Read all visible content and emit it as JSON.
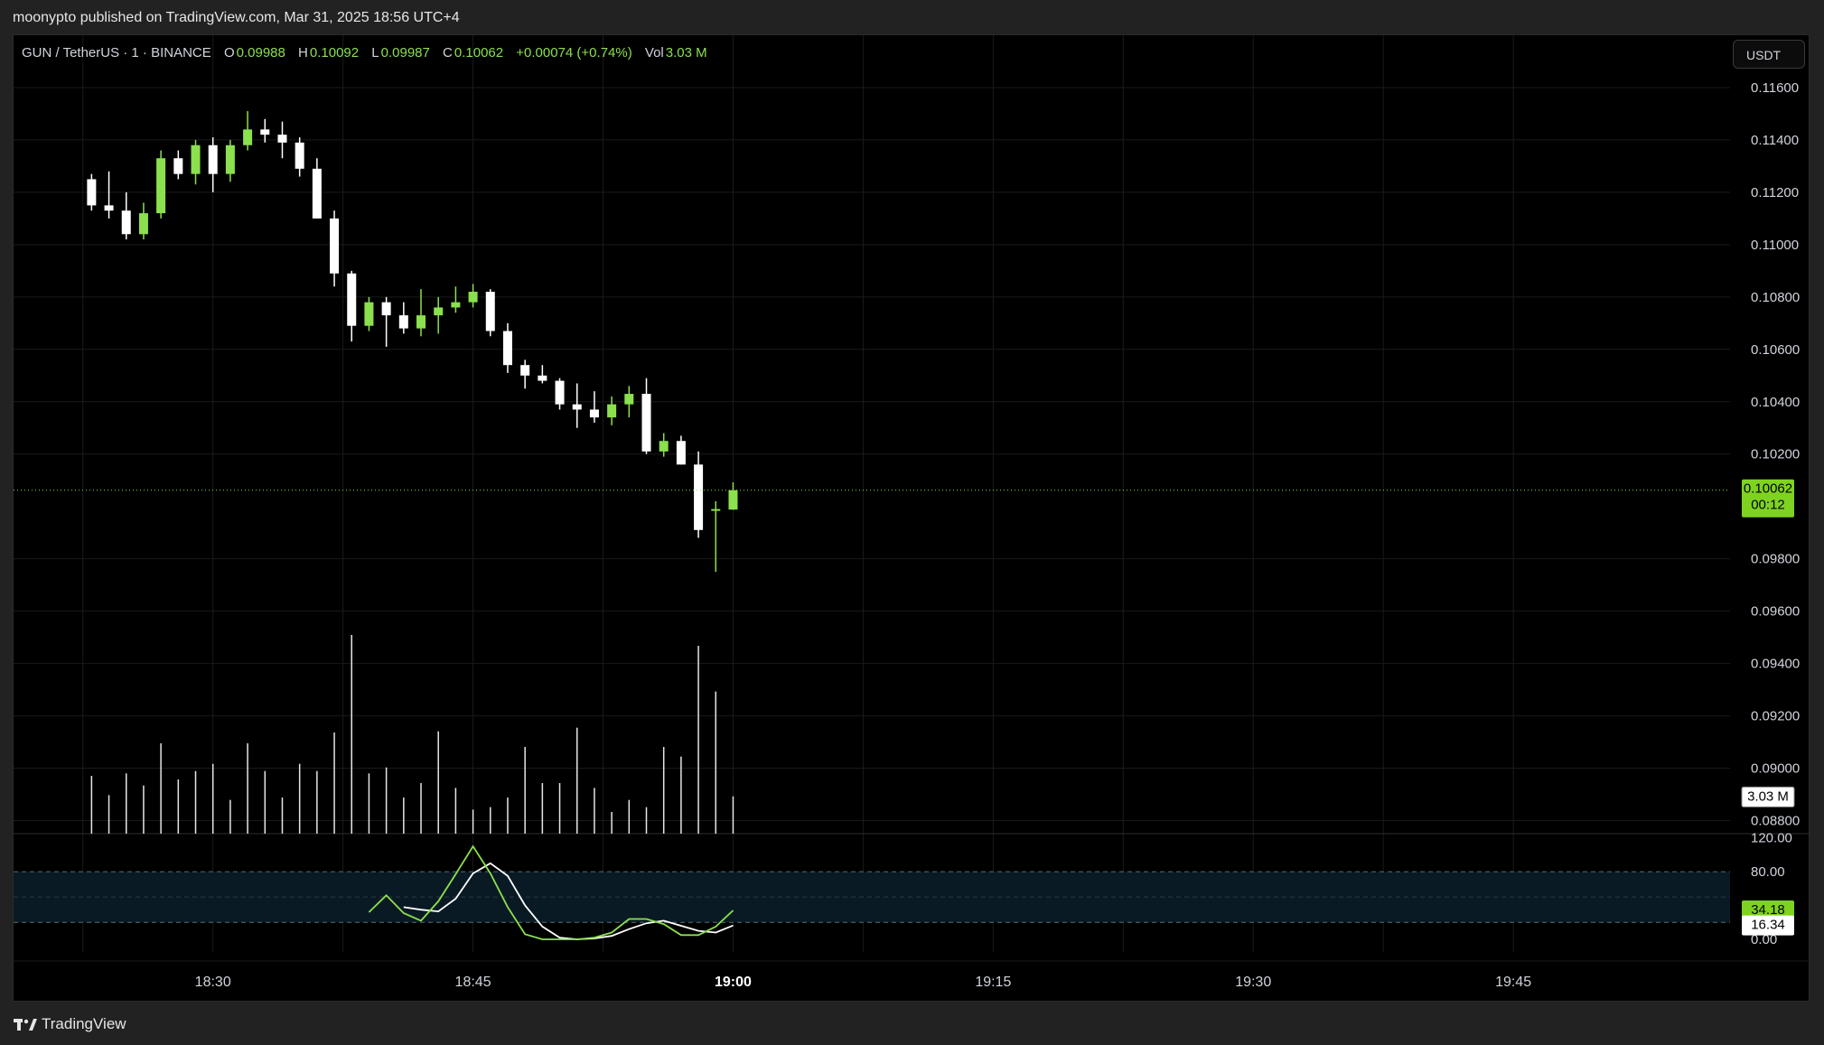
{
  "header": {
    "publish_text": "moonypto published on TradingView.com, Mar 31, 2025 18:56 UTC+4"
  },
  "footer": {
    "brand": "TradingView"
  },
  "toolbar": {
    "currency": "USDT"
  },
  "legend": {
    "symbol": "GUN / TetherUS · 1 · BINANCE",
    "o_label": "O",
    "o_value": "0.09988",
    "h_label": "H",
    "h_value": "0.10092",
    "l_label": "L",
    "l_value": "0.09987",
    "c_label": "C",
    "c_value": "0.10062",
    "change": "+0.00074 (+0.74%)",
    "vol_label": "Vol",
    "vol_value": "3.03 M"
  },
  "colors": {
    "up": "#8be04e",
    "down": "#ffffff",
    "price_badge": "#7ed321",
    "grid": "#1a1a1a",
    "band_fill": "#0a1a24"
  },
  "badges": {
    "price": "0.10062",
    "countdown": "00:12",
    "volume": "3.03 M",
    "stoch_k": "34.18",
    "stoch_d": "16.34"
  },
  "chart_data": {
    "type": "candlestick",
    "price_axis": {
      "ticks": [
        "0.11600",
        "0.11400",
        "0.11200",
        "0.11000",
        "0.10800",
        "0.10600",
        "0.10400",
        "0.10200",
        "0.09800",
        "0.09600",
        "0.09400",
        "0.09200",
        "0.09000",
        "0.08800"
      ],
      "tick_values": [
        0.116,
        0.114,
        0.112,
        0.11,
        0.108,
        0.106,
        0.104,
        0.102,
        0.098,
        0.096,
        0.094,
        0.092,
        0.09,
        0.088
      ],
      "range": [
        0.0875,
        0.118
      ],
      "last_price": 0.10062
    },
    "time_axis": {
      "labels": [
        "18:30",
        "18:45",
        "19:00",
        "19:15",
        "19:30",
        "19:45"
      ],
      "bold_label": "19:00",
      "range_minutes": [
        1098.5,
        1197.5
      ],
      "label_minutes": [
        1110,
        1125,
        1140,
        1155,
        1170,
        1185
      ]
    },
    "candles": [
      {
        "t": 1103,
        "o": 0.1125,
        "h": 0.1127,
        "l": 0.1113,
        "c": 0.1115
      },
      {
        "t": 1104,
        "o": 0.1115,
        "h": 0.1128,
        "l": 0.111,
        "c": 0.1113
      },
      {
        "t": 1105,
        "o": 0.1113,
        "h": 0.112,
        "l": 0.1102,
        "c": 0.1104
      },
      {
        "t": 1106,
        "o": 0.1104,
        "h": 0.1116,
        "l": 0.1102,
        "c": 0.1112
      },
      {
        "t": 1107,
        "o": 0.1112,
        "h": 0.1136,
        "l": 0.111,
        "c": 0.1133
      },
      {
        "t": 1108,
        "o": 0.1133,
        "h": 0.1136,
        "l": 0.1125,
        "c": 0.1127
      },
      {
        "t": 1109,
        "o": 0.1127,
        "h": 0.114,
        "l": 0.1123,
        "c": 0.1138
      },
      {
        "t": 1110,
        "o": 0.1138,
        "h": 0.1141,
        "l": 0.112,
        "c": 0.1127
      },
      {
        "t": 1111,
        "o": 0.1127,
        "h": 0.114,
        "l": 0.1124,
        "c": 0.1138
      },
      {
        "t": 1112,
        "o": 0.1138,
        "h": 0.1151,
        "l": 0.1136,
        "c": 0.1144
      },
      {
        "t": 1113,
        "o": 0.1144,
        "h": 0.1148,
        "l": 0.1139,
        "c": 0.1142
      },
      {
        "t": 1114,
        "o": 0.1142,
        "h": 0.1147,
        "l": 0.1133,
        "c": 0.1139
      },
      {
        "t": 1115,
        "o": 0.1139,
        "h": 0.1141,
        "l": 0.1126,
        "c": 0.1129
      },
      {
        "t": 1116,
        "o": 0.1129,
        "h": 0.1133,
        "l": 0.111,
        "c": 0.111
      },
      {
        "t": 1117,
        "o": 0.111,
        "h": 0.1113,
        "l": 0.1084,
        "c": 0.1089
      },
      {
        "t": 1118,
        "o": 0.1089,
        "h": 0.109,
        "l": 0.1063,
        "c": 0.1069
      },
      {
        "t": 1119,
        "o": 0.1069,
        "h": 0.108,
        "l": 0.1067,
        "c": 0.1078
      },
      {
        "t": 1120,
        "o": 0.1078,
        "h": 0.108,
        "l": 0.1061,
        "c": 0.1073
      },
      {
        "t": 1121,
        "o": 0.1073,
        "h": 0.1078,
        "l": 0.1066,
        "c": 0.1068
      },
      {
        "t": 1122,
        "o": 0.1068,
        "h": 0.1083,
        "l": 0.1065,
        "c": 0.1073
      },
      {
        "t": 1123,
        "o": 0.1073,
        "h": 0.108,
        "l": 0.1066,
        "c": 0.1076
      },
      {
        "t": 1124,
        "o": 0.1076,
        "h": 0.1084,
        "l": 0.1074,
        "c": 0.1078
      },
      {
        "t": 1125,
        "o": 0.1078,
        "h": 0.1085,
        "l": 0.1076,
        "c": 0.1082
      },
      {
        "t": 1126,
        "o": 0.1082,
        "h": 0.1083,
        "l": 0.1065,
        "c": 0.1067
      },
      {
        "t": 1127,
        "o": 0.1067,
        "h": 0.107,
        "l": 0.1051,
        "c": 0.1054
      },
      {
        "t": 1128,
        "o": 0.1054,
        "h": 0.1056,
        "l": 0.1045,
        "c": 0.105
      },
      {
        "t": 1129,
        "o": 0.105,
        "h": 0.1054,
        "l": 0.1047,
        "c": 0.1048
      },
      {
        "t": 1130,
        "o": 0.1048,
        "h": 0.1049,
        "l": 0.1037,
        "c": 0.1039
      },
      {
        "t": 1131,
        "o": 0.1039,
        "h": 0.1047,
        "l": 0.103,
        "c": 0.1037
      },
      {
        "t": 1132,
        "o": 0.1037,
        "h": 0.1044,
        "l": 0.1032,
        "c": 0.1034
      },
      {
        "t": 1133,
        "o": 0.1034,
        "h": 0.1042,
        "l": 0.1031,
        "c": 0.1039
      },
      {
        "t": 1134,
        "o": 0.1039,
        "h": 0.1046,
        "l": 0.1034,
        "c": 0.1043
      },
      {
        "t": 1135,
        "o": 0.1043,
        "h": 0.1049,
        "l": 0.102,
        "c": 0.1021
      },
      {
        "t": 1136,
        "o": 0.1021,
        "h": 0.1028,
        "l": 0.1019,
        "c": 0.1025
      },
      {
        "t": 1137,
        "o": 0.1025,
        "h": 0.1027,
        "l": 0.1016,
        "c": 0.1016
      },
      {
        "t": 1138,
        "o": 0.1016,
        "h": 0.1021,
        "l": 0.0988,
        "c": 0.0991
      },
      {
        "t": 1139,
        "o": 0.09988,
        "h": 0.1002,
        "l": 0.0975,
        "c": 0.0999
      },
      {
        "t": 1140,
        "o": 0.09988,
        "h": 0.10092,
        "l": 0.09987,
        "c": 0.10062
      }
    ],
    "volume": [
      {
        "t": 1103,
        "v": 0.48
      },
      {
        "t": 1104,
        "v": 0.32
      },
      {
        "t": 1105,
        "v": 0.5
      },
      {
        "t": 1106,
        "v": 0.4
      },
      {
        "t": 1107,
        "v": 0.75
      },
      {
        "t": 1108,
        "v": 0.45
      },
      {
        "t": 1109,
        "v": 0.52
      },
      {
        "t": 1110,
        "v": 0.58
      },
      {
        "t": 1111,
        "v": 0.28
      },
      {
        "t": 1112,
        "v": 0.75
      },
      {
        "t": 1113,
        "v": 0.52
      },
      {
        "t": 1114,
        "v": 0.3
      },
      {
        "t": 1115,
        "v": 0.58
      },
      {
        "t": 1116,
        "v": 0.52
      },
      {
        "t": 1117,
        "v": 0.84
      },
      {
        "t": 1118,
        "v": 1.65
      },
      {
        "t": 1119,
        "v": 0.5
      },
      {
        "t": 1120,
        "v": 0.55
      },
      {
        "t": 1121,
        "v": 0.3
      },
      {
        "t": 1122,
        "v": 0.42
      },
      {
        "t": 1123,
        "v": 0.85
      },
      {
        "t": 1124,
        "v": 0.38
      },
      {
        "t": 1125,
        "v": 0.2
      },
      {
        "t": 1126,
        "v": 0.22
      },
      {
        "t": 1127,
        "v": 0.3
      },
      {
        "t": 1128,
        "v": 0.72
      },
      {
        "t": 1129,
        "v": 0.42
      },
      {
        "t": 1130,
        "v": 0.42
      },
      {
        "t": 1131,
        "v": 0.88
      },
      {
        "t": 1132,
        "v": 0.38
      },
      {
        "t": 1133,
        "v": 0.18
      },
      {
        "t": 1134,
        "v": 0.28
      },
      {
        "t": 1135,
        "v": 0.22
      },
      {
        "t": 1136,
        "v": 0.72
      },
      {
        "t": 1137,
        "v": 0.64
      },
      {
        "t": 1138,
        "v": 1.56
      },
      {
        "t": 1139,
        "v": 1.18
      },
      {
        "t": 1140,
        "v": 0.31
      }
    ],
    "stoch": {
      "axis_ticks": [
        "120.00",
        "80.00",
        "0.00"
      ],
      "axis_values": [
        120,
        80,
        0
      ],
      "band": [
        20,
        80
      ],
      "midline": 50,
      "range": [
        -15,
        125
      ],
      "k": [
        {
          "t": 1119,
          "v": 32
        },
        {
          "t": 1120,
          "v": 52
        },
        {
          "t": 1121,
          "v": 31
        },
        {
          "t": 1122,
          "v": 22
        },
        {
          "t": 1123,
          "v": 45
        },
        {
          "t": 1124,
          "v": 77
        },
        {
          "t": 1125,
          "v": 110
        },
        {
          "t": 1126,
          "v": 78
        },
        {
          "t": 1127,
          "v": 38
        },
        {
          "t": 1128,
          "v": 6
        },
        {
          "t": 1129,
          "v": 0
        },
        {
          "t": 1130,
          "v": 0
        },
        {
          "t": 1131,
          "v": 0
        },
        {
          "t": 1132,
          "v": 2
        },
        {
          "t": 1133,
          "v": 8
        },
        {
          "t": 1134,
          "v": 24
        },
        {
          "t": 1135,
          "v": 24
        },
        {
          "t": 1136,
          "v": 18
        },
        {
          "t": 1137,
          "v": 5
        },
        {
          "t": 1138,
          "v": 5
        },
        {
          "t": 1139,
          "v": 15
        },
        {
          "t": 1140,
          "v": 34.18
        }
      ],
      "d": [
        {
          "t": 1121,
          "v": 38
        },
        {
          "t": 1122,
          "v": 35
        },
        {
          "t": 1123,
          "v": 33
        },
        {
          "t": 1124,
          "v": 48
        },
        {
          "t": 1125,
          "v": 78
        },
        {
          "t": 1126,
          "v": 90
        },
        {
          "t": 1127,
          "v": 75
        },
        {
          "t": 1128,
          "v": 40
        },
        {
          "t": 1129,
          "v": 15
        },
        {
          "t": 1130,
          "v": 2
        },
        {
          "t": 1131,
          "v": 0
        },
        {
          "t": 1132,
          "v": 1
        },
        {
          "t": 1133,
          "v": 4
        },
        {
          "t": 1134,
          "v": 12
        },
        {
          "t": 1135,
          "v": 19
        },
        {
          "t": 1136,
          "v": 22
        },
        {
          "t": 1137,
          "v": 16
        },
        {
          "t": 1138,
          "v": 10
        },
        {
          "t": 1139,
          "v": 8
        },
        {
          "t": 1140,
          "v": 16.34
        }
      ]
    }
  }
}
